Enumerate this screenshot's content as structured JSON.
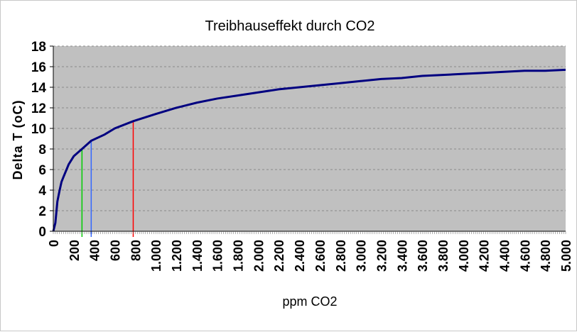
{
  "chart_data": {
    "type": "line",
    "title": "Treibhauseffekt durch CO2",
    "xlabel": "ppm CO2",
    "ylabel": "Delta T (oC)",
    "xlim": [
      0,
      5000
    ],
    "ylim": [
      0,
      18
    ],
    "y_ticks": [
      "0",
      "2",
      "4",
      "6",
      "8",
      "10",
      "12",
      "14",
      "16",
      "18"
    ],
    "x_ticks": [
      "0",
      "200",
      "400",
      "600",
      "800",
      "1.000",
      "1.200",
      "1.400",
      "1.600",
      "1.800",
      "2.000",
      "2.200",
      "2.400",
      "2.600",
      "2.800",
      "3.000",
      "3.200",
      "3.400",
      "3.600",
      "3.800",
      "4.000",
      "4.200",
      "4.400",
      "4.600",
      "4.800",
      "5.000"
    ],
    "grid": "horizontal dashed",
    "plot_background": "#c0c0c0",
    "series": [
      {
        "color": "#000080",
        "x": [
          0,
          20,
          40,
          60,
          80,
          100,
          150,
          200,
          280,
          370,
          500,
          600,
          780,
          1000,
          1200,
          1400,
          1600,
          1800,
          2000,
          2200,
          2400,
          2600,
          2800,
          3000,
          3200,
          3400,
          3600,
          3800,
          4000,
          4200,
          4400,
          4600,
          4800,
          5000
        ],
        "y": [
          0,
          0.8,
          2.9,
          3.9,
          4.8,
          5.3,
          6.5,
          7.3,
          8.0,
          8.8,
          9.4,
          10.0,
          10.7,
          11.4,
          12.0,
          12.5,
          12.9,
          13.2,
          13.5,
          13.8,
          14.0,
          14.2,
          14.4,
          14.6,
          14.8,
          14.9,
          15.1,
          15.2,
          15.3,
          15.4,
          15.5,
          15.6,
          15.6,
          15.7
        ]
      }
    ],
    "markers": [
      {
        "x": 280,
        "y": 8.0,
        "color": "#00cc00"
      },
      {
        "x": 370,
        "y": 8.8,
        "color": "#3366ff"
      },
      {
        "x": 780,
        "y": 10.7,
        "color": "#ff0000"
      }
    ]
  }
}
